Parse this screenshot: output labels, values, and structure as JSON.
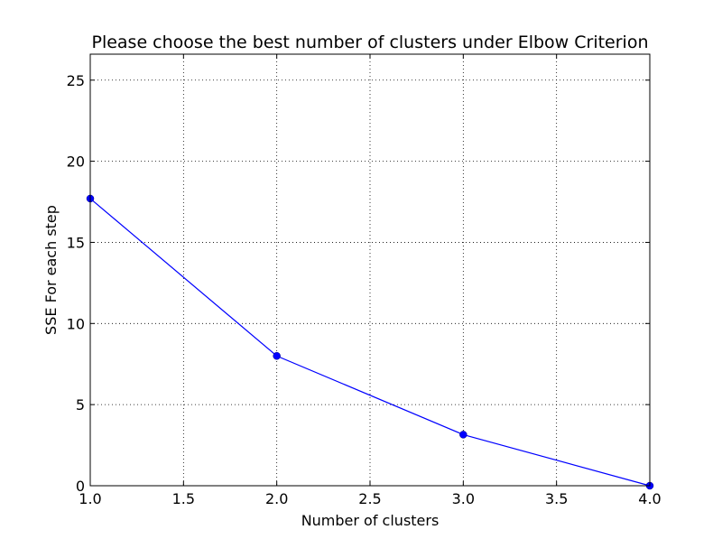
{
  "chart_data": {
    "type": "line",
    "title": "Please choose the best number of clusters under Elbow Criterion",
    "xlabel": "Number of clusters",
    "ylabel": "SSE For each step",
    "xlim": [
      1.0,
      4.0
    ],
    "ylim": [
      0,
      26.6
    ],
    "xticks": [
      1.0,
      1.5,
      2.0,
      2.5,
      3.0,
      3.5,
      4.0
    ],
    "xtick_labels": [
      "1.0",
      "1.5",
      "2.0",
      "2.5",
      "3.0",
      "3.5",
      "4.0"
    ],
    "yticks": [
      0,
      5,
      10,
      15,
      20,
      25
    ],
    "ytick_labels": [
      "0",
      "5",
      "10",
      "15",
      "20",
      "25"
    ],
    "grid": true,
    "series": [
      {
        "x": [
          1,
          2,
          3,
          4
        ],
        "values": [
          17.7,
          8.0,
          3.15,
          0.0
        ],
        "color": "#0000ff",
        "marker": "circle"
      }
    ]
  }
}
